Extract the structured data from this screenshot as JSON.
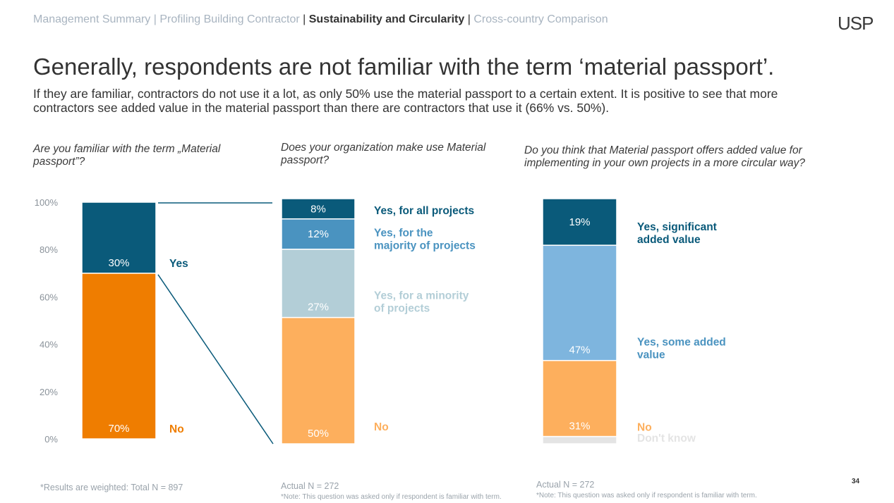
{
  "header": {
    "breadcrumb": [
      {
        "label": "Management Summary",
        "active": false
      },
      {
        "label": "Profiling Building Contractor",
        "active": false
      },
      {
        "label": "Sustainability and Circularity",
        "active": true
      },
      {
        "label": "Cross-country Comparison",
        "active": false
      }
    ],
    "separator": "|",
    "logo": "USP"
  },
  "title": "Generally, respondents are not familiar with the term ‘material passport’.",
  "subtitle": "If they are familiar, contractors do not use it a lot, as only 50% use the material passport to a certain extent. It is positive to see that more contractors see added value in the material passport than there are contractors that use it (66% vs. 50%).",
  "questions": [
    "Are you familiar with the term „Material passport”?",
    "Does your organization make use Material passport?",
    "Do you think that Material passport offers added value for implementing in your own projects in a more circular way?"
  ],
  "footnotes": {
    "weighted": "*Results are weighted: Total N = 897",
    "actual2": "Actual N = 272",
    "note2": "*Note: This question was asked only if respondent is familiar with term.",
    "actual3": "Actual N = 272",
    "note3": "*Note: This question was asked only if respondent is familiar with term."
  },
  "page_number": "34",
  "chart_data": [
    {
      "type": "bar",
      "stacked": true,
      "title": "Are you familiar with the term „Material passport”?",
      "y_ticks": [
        "100%",
        "80%",
        "60%",
        "40%",
        "20%",
        "0%"
      ],
      "ylim": [
        0,
        100
      ],
      "segments": [
        {
          "name": "No",
          "value": 70,
          "label": "70%",
          "color": "#ef7d00",
          "label_color": "#ef7d00"
        },
        {
          "name": "Yes",
          "value": 30,
          "label": "30%",
          "color": "#0a5a7a",
          "label_color": "#0a5a7a"
        }
      ]
    },
    {
      "type": "bar",
      "stacked": true,
      "title": "Does your organization make use Material passport?",
      "ylim": [
        0,
        100
      ],
      "segments": [
        {
          "name": "No",
          "value": 50,
          "label": "50%",
          "color": "#fdaf5d",
          "label_color": "#fdaf5d"
        },
        {
          "name": "Yes, for a minority of projects",
          "value": 27,
          "label": "27%",
          "color": "#b3ced7",
          "label_color": "#b3ced7"
        },
        {
          "name": "Yes, for the majority of projects",
          "value": 12,
          "label": "12%",
          "color": "#4a93c0",
          "label_color": "#4a93c0"
        },
        {
          "name": "Yes, for all projects",
          "value": 8,
          "label": "8%",
          "color": "#0a5a7a",
          "label_color": "#0a5a7a"
        }
      ]
    },
    {
      "type": "bar",
      "stacked": true,
      "title": "Do you think that Material passport offers added value for implementing in your own projects in a more circular way?",
      "ylim": [
        0,
        100
      ],
      "segments": [
        {
          "name": "Don't know",
          "value": 3,
          "label": "",
          "color": "#e4e4e4",
          "label_color": "#e4e4e4"
        },
        {
          "name": "No",
          "value": 31,
          "label": "31%",
          "color": "#fdaf5d",
          "label_color": "#fdaf5d"
        },
        {
          "name": "Yes, some added value",
          "value": 47,
          "label": "47%",
          "color": "#7eb5de",
          "label_color": "#4a93c0"
        },
        {
          "name": "Yes, significant added value",
          "value": 19,
          "label": "19%",
          "color": "#0a5a7a",
          "label_color": "#0a5a7a"
        }
      ]
    }
  ]
}
